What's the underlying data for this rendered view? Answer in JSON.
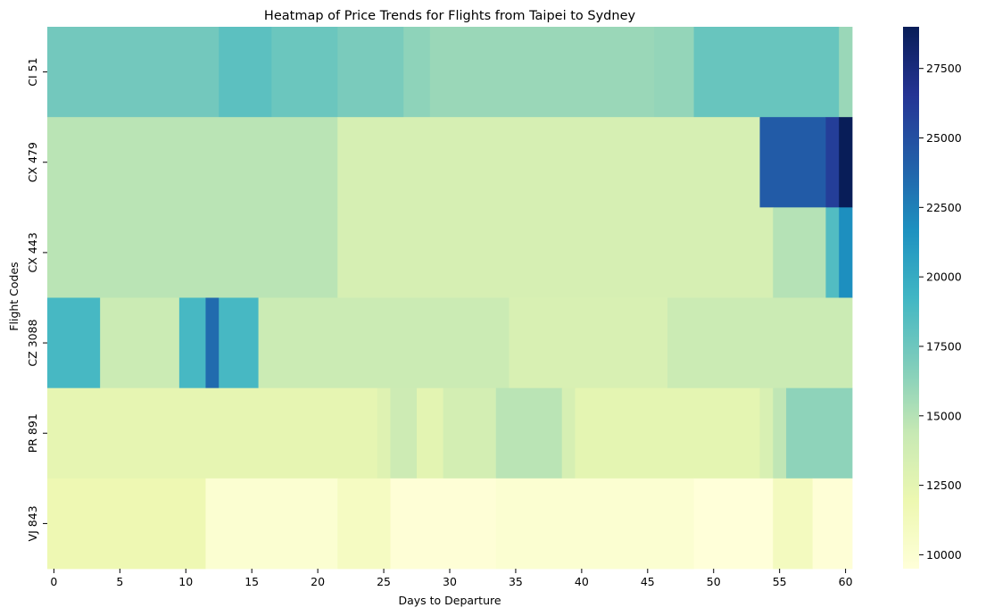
{
  "chart_data": {
    "type": "heatmap",
    "title": "Heatmap of Price Trends for Flights from Taipei to Sydney",
    "xlabel": "Days to Departure",
    "ylabel": "Flight Codes",
    "x_ticks": [
      0,
      5,
      10,
      15,
      20,
      25,
      30,
      35,
      40,
      45,
      50,
      55,
      60
    ],
    "x_range": [
      0,
      60
    ],
    "colormap": "YlGnBu",
    "colorbar": {
      "min": 9500,
      "max": 29000,
      "ticks": [
        10000,
        12500,
        15000,
        17500,
        20000,
        22500,
        25000,
        27500
      ],
      "tick_labels": [
        "10000",
        "12500",
        "15000",
        "17500",
        "20000",
        "22500",
        "25000",
        "27500"
      ]
    },
    "rows": [
      {
        "name": "CI 51",
        "segments": [
          {
            "from": 0,
            "to": 12,
            "value": 17300
          },
          {
            "from": 13,
            "to": 16,
            "value": 18200
          },
          {
            "from": 17,
            "to": 21,
            "value": 17600
          },
          {
            "from": 22,
            "to": 26,
            "value": 17000
          },
          {
            "from": 27,
            "to": 28,
            "value": 16300
          },
          {
            "from": 29,
            "to": 45,
            "value": 15900
          },
          {
            "from": 46,
            "to": 48,
            "value": 16100
          },
          {
            "from": 49,
            "to": 59,
            "value": 17700
          },
          {
            "from": 60,
            "to": 60,
            "value": 15900
          }
        ]
      },
      {
        "name": "CX 479",
        "segments": [
          {
            "from": 0,
            "to": 21,
            "value": 14800
          },
          {
            "from": 22,
            "to": 53,
            "value": 13400
          },
          {
            "from": 54,
            "to": 58,
            "value": 24300
          },
          {
            "from": 59,
            "to": 59,
            "value": 26000
          },
          {
            "from": 60,
            "to": 60,
            "value": 29000
          }
        ]
      },
      {
        "name": "CX 443",
        "segments": [
          {
            "from": 0,
            "to": 21,
            "value": 14800
          },
          {
            "from": 22,
            "to": 54,
            "value": 13400
          },
          {
            "from": 55,
            "to": 58,
            "value": 15000
          },
          {
            "from": 59,
            "to": 59,
            "value": 18600
          },
          {
            "from": 60,
            "to": 60,
            "value": 21800
          }
        ]
      },
      {
        "name": "CZ 3088",
        "segments": [
          {
            "from": 0,
            "to": 3,
            "value": 19000
          },
          {
            "from": 4,
            "to": 9,
            "value": 14100
          },
          {
            "from": 10,
            "to": 11,
            "value": 19000
          },
          {
            "from": 12,
            "to": 12,
            "value": 23500
          },
          {
            "from": 13,
            "to": 15,
            "value": 19000
          },
          {
            "from": 16,
            "to": 34,
            "value": 14100
          },
          {
            "from": 35,
            "to": 46,
            "value": 13300
          },
          {
            "from": 47,
            "to": 60,
            "value": 14100
          }
        ]
      },
      {
        "name": "PR 891",
        "segments": [
          {
            "from": 0,
            "to": 24,
            "value": 12400
          },
          {
            "from": 25,
            "to": 25,
            "value": 12900
          },
          {
            "from": 26,
            "to": 27,
            "value": 14000
          },
          {
            "from": 28,
            "to": 29,
            "value": 12600
          },
          {
            "from": 30,
            "to": 33,
            "value": 13600
          },
          {
            "from": 34,
            "to": 38,
            "value": 14800
          },
          {
            "from": 39,
            "to": 39,
            "value": 13400
          },
          {
            "from": 40,
            "to": 53,
            "value": 12500
          },
          {
            "from": 54,
            "to": 54,
            "value": 13300
          },
          {
            "from": 55,
            "to": 55,
            "value": 14600
          },
          {
            "from": 56,
            "to": 60,
            "value": 16300
          }
        ]
      },
      {
        "name": "VJ 843",
        "segments": [
          {
            "from": 0,
            "to": 11,
            "value": 11800
          },
          {
            "from": 12,
            "to": 21,
            "value": 10000
          },
          {
            "from": 22,
            "to": 25,
            "value": 10900
          },
          {
            "from": 26,
            "to": 33,
            "value": 9700
          },
          {
            "from": 34,
            "to": 48,
            "value": 10000
          },
          {
            "from": 49,
            "to": 54,
            "value": 9500
          },
          {
            "from": 55,
            "to": 57,
            "value": 11100
          },
          {
            "from": 58,
            "to": 60,
            "value": 9700
          }
        ]
      }
    ]
  }
}
